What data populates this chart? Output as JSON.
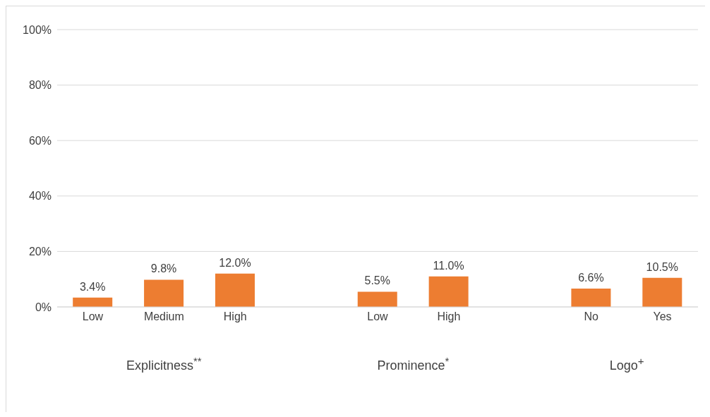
{
  "chart_data": {
    "type": "bar",
    "categories": [
      "Low",
      "Medium",
      "High",
      null,
      "Low",
      "High",
      null,
      "No",
      "Yes"
    ],
    "values": [
      3.4,
      9.8,
      12.0,
      null,
      5.5,
      11.0,
      null,
      6.6,
      10.5
    ],
    "value_labels": [
      "3.4%",
      "9.8%",
      "12.0%",
      null,
      "5.5%",
      "11.0%",
      null,
      "6.6%",
      "10.5%"
    ],
    "color": "#ed7d31",
    "ylim": [
      0,
      100
    ],
    "yticks": [
      {
        "value": 0,
        "label": "0%"
      },
      {
        "value": 20,
        "label": "20%"
      },
      {
        "value": 40,
        "label": "40%"
      },
      {
        "value": 60,
        "label": "60%"
      },
      {
        "value": 80,
        "label": "80%"
      },
      {
        "value": 100,
        "label": "100%"
      }
    ],
    "grid": "y",
    "annotations": [
      "Explicitness$^{**}$",
      "Prominence$^{*}$",
      "Logo$^{+}$"
    ]
  }
}
